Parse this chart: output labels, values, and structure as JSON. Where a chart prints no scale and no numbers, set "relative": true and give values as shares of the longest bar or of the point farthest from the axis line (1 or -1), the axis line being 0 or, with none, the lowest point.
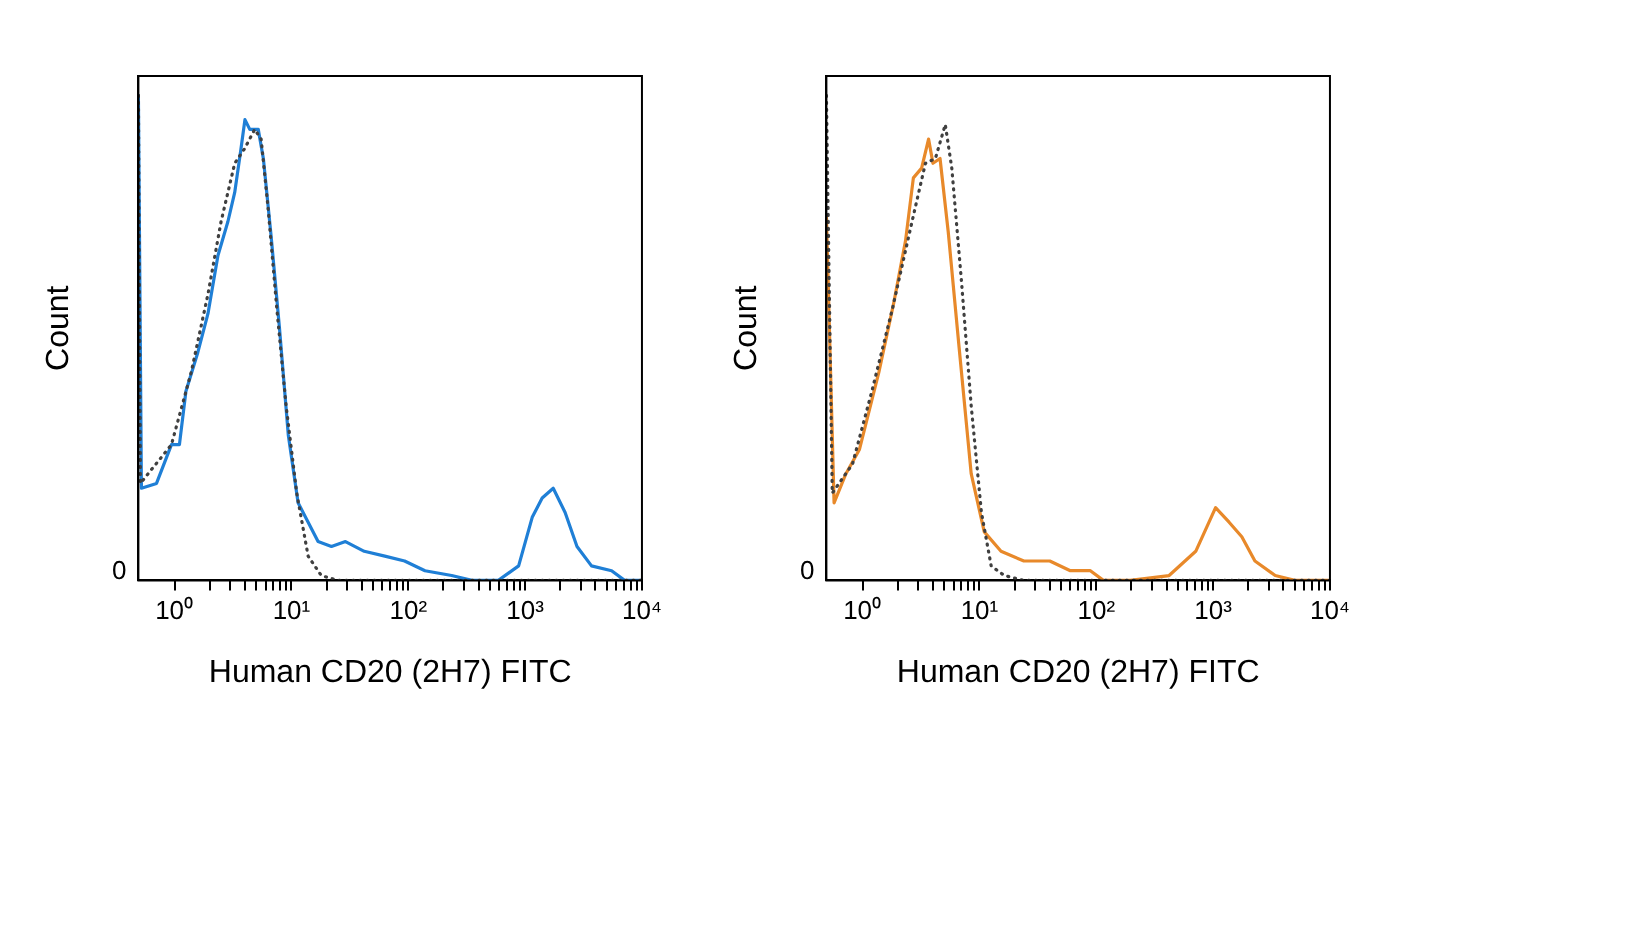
{
  "chart_data": [
    {
      "type": "line",
      "relative": true,
      "xlabel": "Human CD20 (2H7) FITC",
      "ylabel": "Count",
      "annotations": [
        "0"
      ],
      "log": "x",
      "grid": false,
      "legend": false,
      "marker": "none",
      "xlim": [
        0.49,
        10000
      ],
      "xticks": [
        {
          "value": 1,
          "label": "10⁰"
        },
        {
          "value": 2,
          "label": null
        },
        {
          "value": 3,
          "label": null
        },
        {
          "value": 4,
          "label": null
        },
        {
          "value": 5,
          "label": null
        },
        {
          "value": 6,
          "label": null
        },
        {
          "value": 7,
          "label": null
        },
        {
          "value": 8,
          "label": null
        },
        {
          "value": 9,
          "label": null
        },
        {
          "value": 10,
          "label": "10¹"
        },
        {
          "value": 20,
          "label": null
        },
        {
          "value": 30,
          "label": null
        },
        {
          "value": 40,
          "label": null
        },
        {
          "value": 50,
          "label": null
        },
        {
          "value": 60,
          "label": null
        },
        {
          "value": 70,
          "label": null
        },
        {
          "value": 80,
          "label": null
        },
        {
          "value": 90,
          "label": null
        },
        {
          "value": 100,
          "label": "10²"
        },
        {
          "value": 200,
          "label": null
        },
        {
          "value": 300,
          "label": null
        },
        {
          "value": 400,
          "label": null
        },
        {
          "value": 500,
          "label": null
        },
        {
          "value": 600,
          "label": null
        },
        {
          "value": 700,
          "label": null
        },
        {
          "value": 800,
          "label": null
        },
        {
          "value": 900,
          "label": null
        },
        {
          "value": 1000,
          "label": "10³"
        },
        {
          "value": 2000,
          "label": null
        },
        {
          "value": 3000,
          "label": null
        },
        {
          "value": 4000,
          "label": null
        },
        {
          "value": 5000,
          "label": null
        },
        {
          "value": 6000,
          "label": null
        },
        {
          "value": 7000,
          "label": null
        },
        {
          "value": 8000,
          "label": null
        },
        {
          "value": 9000,
          "label": null
        },
        {
          "value": 10000,
          "label": "10⁴"
        }
      ],
      "series": [
        {
          "color": "#404040",
          "line_style": "dotted",
          "x": [
            0.49,
            0.51,
            0.94,
            1.39,
            1.93,
            2.5,
            3.27,
            3.97,
            4.85,
            5.5,
            6.3,
            7.5,
            9.0,
            11.1,
            13.9,
            18,
            25,
            10000
          ],
          "values": [
            1.0,
            0.2,
            0.28,
            0.43,
            0.59,
            0.74,
            0.86,
            0.89,
            0.93,
            0.91,
            0.77,
            0.56,
            0.36,
            0.18,
            0.05,
            0.01,
            0,
            0
          ]
        },
        {
          "color": "#1f7fd6",
          "line_style": "solid",
          "x": [
            0.49,
            0.52,
            0.7,
            0.94,
            1.1,
            1.25,
            1.58,
            1.93,
            2.35,
            2.86,
            3.27,
            3.7,
            4.0,
            4.4,
            4.66,
            5.2,
            5.75,
            6.7,
            7.9,
            9.4,
            11.4,
            13.9,
            16.9,
            22,
            29,
            42,
            63,
            93,
            139,
            235,
            350,
            590,
            880,
            1150,
            1400,
            1740,
            2200,
            2780,
            3700,
            5500,
            7100,
            10000
          ],
          "values": [
            1.0,
            0.19,
            0.2,
            0.28,
            0.28,
            0.39,
            0.47,
            0.55,
            0.67,
            0.74,
            0.8,
            0.89,
            0.95,
            0.93,
            0.93,
            0.93,
            0.87,
            0.71,
            0.52,
            0.3,
            0.16,
            0.12,
            0.08,
            0.07,
            0.08,
            0.06,
            0.05,
            0.04,
            0.02,
            0.01,
            0,
            0,
            0.03,
            0.13,
            0.17,
            0.19,
            0.14,
            0.07,
            0.03,
            0.02,
            0,
            0
          ]
        }
      ]
    },
    {
      "type": "line",
      "relative": true,
      "xlabel": "Human CD20 (2H7) FITC",
      "ylabel": "Count",
      "annotations": [
        "0"
      ],
      "log": "x",
      "grid": false,
      "legend": false,
      "marker": "none",
      "xlim": [
        0.49,
        10000
      ],
      "xticks": [
        {
          "value": 1,
          "label": "10⁰"
        },
        {
          "value": 2,
          "label": null
        },
        {
          "value": 3,
          "label": null
        },
        {
          "value": 4,
          "label": null
        },
        {
          "value": 5,
          "label": null
        },
        {
          "value": 6,
          "label": null
        },
        {
          "value": 7,
          "label": null
        },
        {
          "value": 8,
          "label": null
        },
        {
          "value": 9,
          "label": null
        },
        {
          "value": 10,
          "label": "10¹"
        },
        {
          "value": 20,
          "label": null
        },
        {
          "value": 30,
          "label": null
        },
        {
          "value": 40,
          "label": null
        },
        {
          "value": 50,
          "label": null
        },
        {
          "value": 60,
          "label": null
        },
        {
          "value": 70,
          "label": null
        },
        {
          "value": 80,
          "label": null
        },
        {
          "value": 90,
          "label": null
        },
        {
          "value": 100,
          "label": "10²"
        },
        {
          "value": 200,
          "label": null
        },
        {
          "value": 300,
          "label": null
        },
        {
          "value": 400,
          "label": null
        },
        {
          "value": 500,
          "label": null
        },
        {
          "value": 600,
          "label": null
        },
        {
          "value": 700,
          "label": null
        },
        {
          "value": 800,
          "label": null
        },
        {
          "value": 900,
          "label": null
        },
        {
          "value": 1000,
          "label": "10³"
        },
        {
          "value": 2000,
          "label": null
        },
        {
          "value": 3000,
          "label": null
        },
        {
          "value": 4000,
          "label": null
        },
        {
          "value": 5000,
          "label": null
        },
        {
          "value": 6000,
          "label": null
        },
        {
          "value": 7000,
          "label": null
        },
        {
          "value": 8000,
          "label": null
        },
        {
          "value": 9000,
          "label": null
        },
        {
          "value": 10000,
          "label": "10⁴"
        }
      ],
      "series": [
        {
          "color": "#404040",
          "line_style": "dotted",
          "x": [
            0.49,
            0.55,
            0.82,
            1.2,
            1.8,
            2.65,
            3.45,
            4.2,
            5.1,
            5.8,
            7.0,
            8.5,
            10.4,
            12.6,
            16.3,
            24,
            10000
          ],
          "values": [
            1.0,
            0.18,
            0.24,
            0.39,
            0.56,
            0.74,
            0.86,
            0.87,
            0.94,
            0.85,
            0.62,
            0.36,
            0.14,
            0.03,
            0.01,
            0,
            0
          ]
        },
        {
          "color": "#e8892a",
          "line_style": "solid",
          "x": [
            0.49,
            0.57,
            0.72,
            0.94,
            1.38,
            1.84,
            2.33,
            2.72,
            3.2,
            3.67,
            4.0,
            4.6,
            5.4,
            6.7,
            8.5,
            11,
            15.3,
            24,
            40,
            60,
            89,
            115,
            195,
            420,
            710,
            1050,
            1370,
            1760,
            2280,
            3400,
            5000,
            10000
          ],
          "values": [
            0.75,
            0.16,
            0.22,
            0.27,
            0.43,
            0.57,
            0.7,
            0.83,
            0.85,
            0.91,
            0.86,
            0.87,
            0.72,
            0.48,
            0.22,
            0.1,
            0.06,
            0.04,
            0.04,
            0.02,
            0.02,
            0,
            0,
            0.01,
            0.06,
            0.15,
            0.12,
            0.09,
            0.04,
            0.01,
            0,
            0
          ]
        }
      ]
    }
  ]
}
